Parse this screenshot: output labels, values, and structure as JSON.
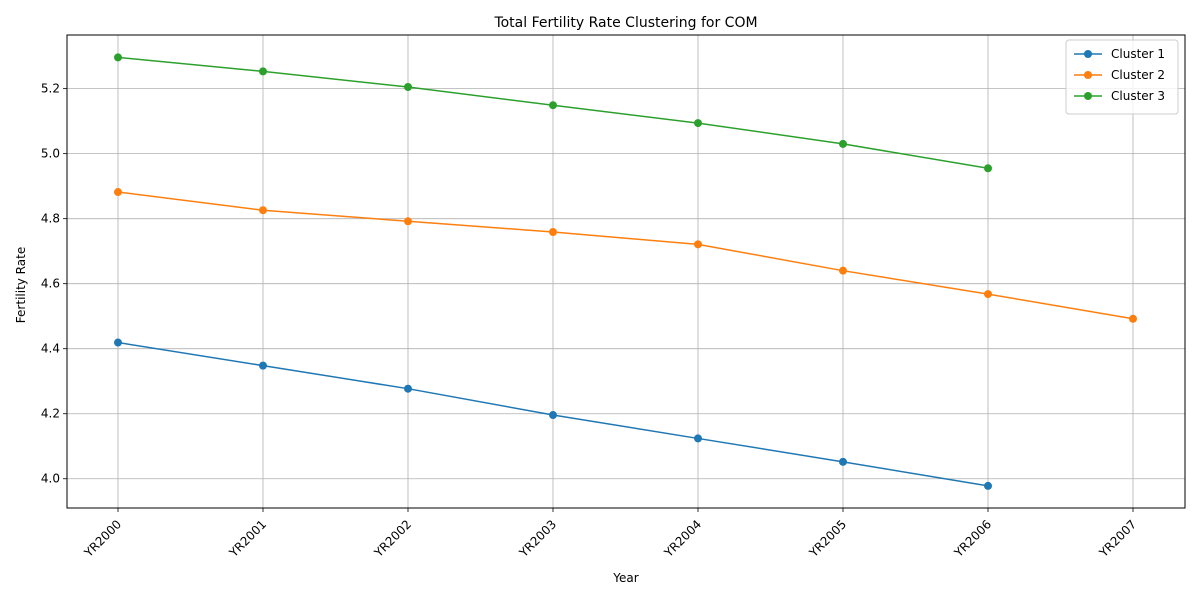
{
  "chart_data": {
    "type": "line",
    "title": "Total Fertility Rate Clustering for COM",
    "xlabel": "Year",
    "ylabel": "Fertility Rate",
    "categories": [
      "YR2000",
      "YR2001",
      "YR2002",
      "YR2003",
      "YR2004",
      "YR2005",
      "YR2006",
      "YR2007"
    ],
    "ylim": [
      3.91,
      5.365
    ],
    "yticks": [
      "4.0",
      "4.2",
      "4.4",
      "4.6",
      "4.8",
      "5.0",
      "5.2"
    ],
    "grid": true,
    "legend_position": "top-right",
    "series": [
      {
        "name": "Cluster 1",
        "color": "#1f77b4",
        "values": [
          4.419,
          4.348,
          4.277,
          4.196,
          4.124,
          4.052,
          3.978,
          null
        ]
      },
      {
        "name": "Cluster 2",
        "color": "#ff7f0e",
        "values": [
          4.882,
          4.826,
          4.792,
          4.759,
          4.721,
          4.64,
          4.568,
          4.492
        ]
      },
      {
        "name": "Cluster 3",
        "color": "#2ca02c",
        "values": [
          5.296,
          5.253,
          5.205,
          5.149,
          5.094,
          5.03,
          4.955,
          null
        ]
      }
    ]
  }
}
